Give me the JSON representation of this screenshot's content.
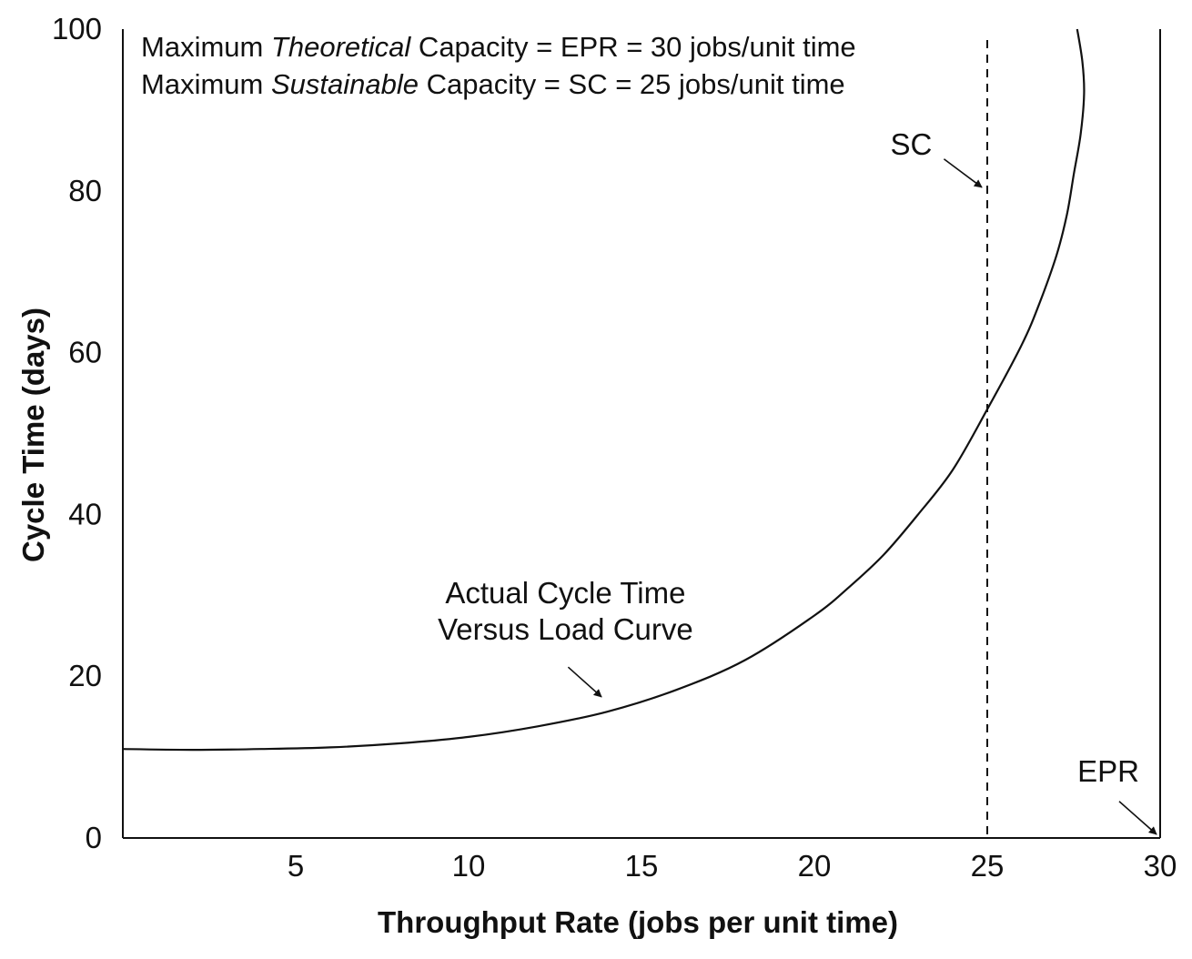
{
  "chart_data": {
    "type": "line",
    "xlabel": "Throughput Rate (jobs per unit time)",
    "ylabel": "Cycle Time (days)",
    "xlim": [
      0,
      30
    ],
    "ylim": [
      0,
      100
    ],
    "x_ticks": [
      5,
      10,
      15,
      20,
      25,
      30
    ],
    "y_ticks": [
      0,
      20,
      40,
      60,
      80,
      100
    ],
    "grid": false,
    "notes": [
      {
        "before": "Maximum ",
        "em": "Theoretical",
        "after": " Capacity = EPR = 30 jobs/unit time"
      },
      {
        "before": "Maximum ",
        "em": "Sustainable",
        "after": " Capacity = SC = 25 jobs/unit time"
      }
    ],
    "series": [
      {
        "x": [
          0,
          2,
          4,
          6,
          8,
          10,
          12,
          14,
          16,
          18,
          20,
          21,
          22,
          23,
          24,
          25,
          26,
          26.5,
          27,
          27.3,
          27.5,
          27.7,
          27.8,
          27.75,
          27.6
        ],
        "y": [
          11,
          10.9,
          11,
          11.2,
          11.7,
          12.5,
          13.8,
          15.6,
          18.3,
          22,
          27.5,
          31,
          35,
          40,
          45.5,
          53,
          61,
          66,
          72,
          77,
          82,
          87,
          92,
          96,
          100
        ]
      }
    ],
    "reference_lines": [
      {
        "label": "SC",
        "x": 25,
        "style": "dashed"
      },
      {
        "label": "EPR",
        "x": 30,
        "style": "solid"
      }
    ],
    "annotations": [
      {
        "lines": [
          "Actual Cycle Time",
          "Versus Load Curve"
        ],
        "x": 12.8,
        "y": 29,
        "arrow_to": [
          14,
          17
        ]
      },
      {
        "lines": [
          "SC"
        ],
        "x": 22.8,
        "y": 84.5,
        "arrow_to": [
          25,
          80
        ]
      },
      {
        "lines": [
          "EPR"
        ],
        "x": 28.5,
        "y": 7,
        "arrow_to": [
          30,
          0
        ]
      }
    ]
  }
}
